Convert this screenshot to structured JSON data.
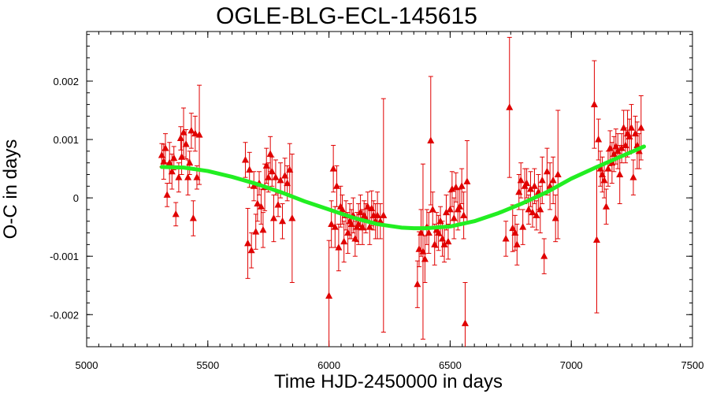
{
  "chart_data": {
    "type": "scatter",
    "title": "OGLE-BLG-ECL-145615",
    "xlabel": "Time HJD-2450000 in days",
    "ylabel": "O-C in days",
    "xlim": [
      5000,
      7500
    ],
    "ylim": [
      -0.00255,
      0.00285
    ],
    "x_ticks": [
      5000,
      5500,
      6000,
      6500,
      7000,
      7500
    ],
    "x_tick_labels": [
      "5000",
      "5500",
      "6000",
      "6500",
      "7000",
      "7500"
    ],
    "y_ticks": [
      -0.002,
      -0.001,
      0,
      0.001,
      0.002
    ],
    "y_tick_labels": [
      "-0.002",
      "-0.001",
      "0",
      "0.001",
      "0.002"
    ],
    "grid": false,
    "colors": {
      "points": "#e00000",
      "fit": "#22ee22"
    },
    "series": [
      {
        "kind": "points-with-errorbars",
        "points": [
          {
            "x": 5310,
            "y": 0.00073,
            "err": 0.0002
          },
          {
            "x": 5318,
            "y": 0.00062,
            "err": 0.0003
          },
          {
            "x": 5325,
            "y": 0.00085,
            "err": 0.00025
          },
          {
            "x": 5332,
            "y": 5e-05,
            "err": 0.0002
          },
          {
            "x": 5342,
            "y": 0.0006,
            "err": 0.00035
          },
          {
            "x": 5352,
            "y": 0.00045,
            "err": 0.0003
          },
          {
            "x": 5360,
            "y": 0.00068,
            "err": 0.0002
          },
          {
            "x": 5368,
            "y": -0.00028,
            "err": 0.0002
          },
          {
            "x": 5380,
            "y": 0.00035,
            "err": 0.00025
          },
          {
            "x": 5388,
            "y": 0.00102,
            "err": 0.0002
          },
          {
            "x": 5392,
            "y": 0.0007,
            "err": 0.0003
          },
          {
            "x": 5400,
            "y": 0.00112,
            "err": 0.00042
          },
          {
            "x": 5410,
            "y": 0.00092,
            "err": 0.00025
          },
          {
            "x": 5418,
            "y": 0.00035,
            "err": 0.0003
          },
          {
            "x": 5425,
            "y": 0.0006,
            "err": 0.0002
          },
          {
            "x": 5432,
            "y": 0.00115,
            "err": 0.0003
          },
          {
            "x": 5440,
            "y": -0.00035,
            "err": 0.0003
          },
          {
            "x": 5448,
            "y": 0.0011,
            "err": 0.0003
          },
          {
            "x": 5455,
            "y": 0.00035,
            "err": 0.0002
          },
          {
            "x": 5465,
            "y": 0.00108,
            "err": 0.00085
          },
          {
            "x": 5655,
            "y": 0.00065,
            "err": 0.0003
          },
          {
            "x": 5665,
            "y": -0.00078,
            "err": 0.0006
          },
          {
            "x": 5672,
            "y": 0.00048,
            "err": 0.0003
          },
          {
            "x": 5680,
            "y": -0.0009,
            "err": 0.0003
          },
          {
            "x": 5690,
            "y": 0.0002,
            "err": 0.00025
          },
          {
            "x": 5698,
            "y": -0.00058,
            "err": 0.0003
          },
          {
            "x": 5705,
            "y": -0.0001,
            "err": 0.0003
          },
          {
            "x": 5712,
            "y": 0.00025,
            "err": 0.0002
          },
          {
            "x": 5720,
            "y": -0.00015,
            "err": 0.0003
          },
          {
            "x": 5728,
            "y": -0.00055,
            "err": 0.0003
          },
          {
            "x": 5735,
            "y": 0.00018,
            "err": 0.0004
          },
          {
            "x": 5742,
            "y": 0.00055,
            "err": 0.0003
          },
          {
            "x": 5750,
            "y": 0.00035,
            "err": 0.00025
          },
          {
            "x": 5758,
            "y": 0.00075,
            "err": 0.0003
          },
          {
            "x": 5765,
            "y": 0.00045,
            "err": 0.00025
          },
          {
            "x": 5772,
            "y": -0.00035,
            "err": 0.0004
          },
          {
            "x": 5780,
            "y": 0.00035,
            "err": 0.0003
          },
          {
            "x": 5790,
            "y": -0.00012,
            "err": 0.0002
          },
          {
            "x": 5800,
            "y": 0.0003,
            "err": 0.0003
          },
          {
            "x": 5808,
            "y": -0.0004,
            "err": 0.0003
          },
          {
            "x": 5818,
            "y": 0.00038,
            "err": 0.0003
          },
          {
            "x": 5828,
            "y": 0.00025,
            "err": 0.0003
          },
          {
            "x": 5838,
            "y": 0.00048,
            "err": 0.00045
          },
          {
            "x": 5848,
            "y": -0.00035,
            "err": 0.0011
          },
          {
            "x": 6000,
            "y": -0.00168,
            "err": 0.00095
          },
          {
            "x": 6010,
            "y": -0.00045,
            "err": 0.0004
          },
          {
            "x": 6018,
            "y": 0.0005,
            "err": 0.0004
          },
          {
            "x": 6025,
            "y": -0.0005,
            "err": 0.00035
          },
          {
            "x": 6032,
            "y": 0.0002,
            "err": 0.00035
          },
          {
            "x": 6040,
            "y": -0.00085,
            "err": 0.0004
          },
          {
            "x": 6048,
            "y": -0.00015,
            "err": 0.00035
          },
          {
            "x": 6055,
            "y": -0.0002,
            "err": 0.00025
          },
          {
            "x": 6062,
            "y": -0.00075,
            "err": 0.00035
          },
          {
            "x": 6070,
            "y": -0.0003,
            "err": 0.00025
          },
          {
            "x": 6078,
            "y": -0.0006,
            "err": 0.00035
          },
          {
            "x": 6086,
            "y": -0.0004,
            "err": 0.0003
          },
          {
            "x": 6093,
            "y": -0.00045,
            "err": 0.00025
          },
          {
            "x": 6100,
            "y": -0.0003,
            "err": 0.0003
          },
          {
            "x": 6108,
            "y": -0.0007,
            "err": 0.0003
          },
          {
            "x": 6115,
            "y": -0.0005,
            "err": 0.00025
          },
          {
            "x": 6122,
            "y": -0.00045,
            "err": 0.00035
          },
          {
            "x": 6130,
            "y": -0.00025,
            "err": 0.0003
          },
          {
            "x": 6138,
            "y": -0.0005,
            "err": 0.0003
          },
          {
            "x": 6145,
            "y": -0.0003,
            "err": 0.00025
          },
          {
            "x": 6152,
            "y": -0.00035,
            "err": 0.00025
          },
          {
            "x": 6160,
            "y": -0.00015,
            "err": 0.00025
          },
          {
            "x": 6168,
            "y": -0.0005,
            "err": 0.0003
          },
          {
            "x": 6176,
            "y": -0.00018,
            "err": 0.0003
          },
          {
            "x": 6184,
            "y": -0.0003,
            "err": 0.00025
          },
          {
            "x": 6192,
            "y": -0.0004,
            "err": 0.0003
          },
          {
            "x": 6200,
            "y": -0.0003,
            "err": 0.0004
          },
          {
            "x": 6212,
            "y": -0.0004,
            "err": 0.0003
          },
          {
            "x": 6225,
            "y": -0.0003,
            "err": 0.002
          },
          {
            "x": 6365,
            "y": -0.00148,
            "err": 0.0004
          },
          {
            "x": 6372,
            "y": -0.00088,
            "err": 0.0003
          },
          {
            "x": 6380,
            "y": -0.0006,
            "err": 0.0004
          },
          {
            "x": 6388,
            "y": -0.00092,
            "err": 0.0015
          },
          {
            "x": 6396,
            "y": -0.00105,
            "err": 0.0004
          },
          {
            "x": 6404,
            "y": -0.0005,
            "err": 0.0003
          },
          {
            "x": 6412,
            "y": -0.0006,
            "err": 0.00035
          },
          {
            "x": 6420,
            "y": 0.00098,
            "err": 0.0011
          },
          {
            "x": 6428,
            "y": -0.0002,
            "err": 0.0003
          },
          {
            "x": 6436,
            "y": -0.0008,
            "err": 0.00035
          },
          {
            "x": 6444,
            "y": -0.00055,
            "err": 0.0003
          },
          {
            "x": 6452,
            "y": -0.0006,
            "err": 0.0003
          },
          {
            "x": 6460,
            "y": -0.0004,
            "err": 0.00025
          },
          {
            "x": 6468,
            "y": -0.0007,
            "err": 0.0003
          },
          {
            "x": 6476,
            "y": -0.0008,
            "err": 0.0003
          },
          {
            "x": 6484,
            "y": -0.00025,
            "err": 0.0003
          },
          {
            "x": 6492,
            "y": -0.00075,
            "err": 0.0003
          },
          {
            "x": 6500,
            "y": -0.0002,
            "err": 0.0003
          },
          {
            "x": 6508,
            "y": 0.00015,
            "err": 0.0003
          },
          {
            "x": 6516,
            "y": -0.00035,
            "err": 0.00035
          },
          {
            "x": 6524,
            "y": 0.00018,
            "err": 0.00025
          },
          {
            "x": 6532,
            "y": -0.0002,
            "err": 0.00035
          },
          {
            "x": 6540,
            "y": -0.00015,
            "err": 0.0003
          },
          {
            "x": 6548,
            "y": 0.0002,
            "err": 0.0003
          },
          {
            "x": 6556,
            "y": -0.0003,
            "err": 0.0004
          },
          {
            "x": 6562,
            "y": -0.00215,
            "err": 0.0007
          },
          {
            "x": 6570,
            "y": 0.00028,
            "err": 0.0007
          },
          {
            "x": 6730,
            "y": -0.0007,
            "err": 0.0003
          },
          {
            "x": 6745,
            "y": 0.00155,
            "err": 0.0012
          },
          {
            "x": 6758,
            "y": -0.00052,
            "err": 0.0004
          },
          {
            "x": 6768,
            "y": -0.0006,
            "err": 0.0003
          },
          {
            "x": 6776,
            "y": -0.0008,
            "err": 0.00035
          },
          {
            "x": 6784,
            "y": 0.0001,
            "err": 0.0003
          },
          {
            "x": 6792,
            "y": 0.0003,
            "err": 0.0003
          },
          {
            "x": 6800,
            "y": -0.0005,
            "err": 0.0003
          },
          {
            "x": 6808,
            "y": 0.0002,
            "err": 0.0003
          },
          {
            "x": 6816,
            "y": 0.00025,
            "err": 0.00025
          },
          {
            "x": 6824,
            "y": -0.0002,
            "err": 0.00025
          },
          {
            "x": 6832,
            "y": 0.00015,
            "err": 0.0003
          },
          {
            "x": 6840,
            "y": -0.00025,
            "err": 0.00025
          },
          {
            "x": 6848,
            "y": 0.0002,
            "err": 0.0003
          },
          {
            "x": 6856,
            "y": -0.0003,
            "err": 0.00025
          },
          {
            "x": 6864,
            "y": 0.0001,
            "err": 0.0003
          },
          {
            "x": 6872,
            "y": -0.0002,
            "err": 0.0004
          },
          {
            "x": 6880,
            "y": 0.0003,
            "err": 0.0004
          },
          {
            "x": 6888,
            "y": -0.001,
            "err": 0.0003
          },
          {
            "x": 6900,
            "y": 0.00045,
            "err": 0.0004
          },
          {
            "x": 6912,
            "y": 0.0002,
            "err": 0.0004
          },
          {
            "x": 6925,
            "y": 0.0003,
            "err": 0.0004
          },
          {
            "x": 6935,
            "y": -0.00035,
            "err": 0.0004
          },
          {
            "x": 6945,
            "y": 0.0004,
            "err": 0.0011
          },
          {
            "x": 7095,
            "y": 0.0016,
            "err": 0.00075
          },
          {
            "x": 7105,
            "y": -0.00072,
            "err": 0.00125
          },
          {
            "x": 7112,
            "y": 0.001,
            "err": 0.00035
          },
          {
            "x": 7120,
            "y": 0.0005,
            "err": 0.0003
          },
          {
            "x": 7128,
            "y": 0.0004,
            "err": 0.0003
          },
          {
            "x": 7136,
            "y": 0.0003,
            "err": 0.0003
          },
          {
            "x": 7144,
            "y": -0.00015,
            "err": 0.0003
          },
          {
            "x": 7152,
            "y": 0.0005,
            "err": 0.0003
          },
          {
            "x": 7160,
            "y": 0.00085,
            "err": 0.0003
          },
          {
            "x": 7168,
            "y": 0.0006,
            "err": 0.00035
          },
          {
            "x": 7176,
            "y": 0.00075,
            "err": 0.0003
          },
          {
            "x": 7184,
            "y": 0.00088,
            "err": 0.0003
          },
          {
            "x": 7192,
            "y": 0.0008,
            "err": 0.0003
          },
          {
            "x": 7200,
            "y": 0.0004,
            "err": 0.0005
          },
          {
            "x": 7208,
            "y": 0.00085,
            "err": 0.00025
          },
          {
            "x": 7216,
            "y": 0.0012,
            "err": 0.0003
          },
          {
            "x": 7224,
            "y": 0.0009,
            "err": 0.0003
          },
          {
            "x": 7232,
            "y": 0.0011,
            "err": 0.0004
          },
          {
            "x": 7240,
            "y": 0.00105,
            "err": 0.0003
          },
          {
            "x": 7248,
            "y": 0.0012,
            "err": 0.0004
          },
          {
            "x": 7256,
            "y": 0.00035,
            "err": 0.0003
          },
          {
            "x": 7264,
            "y": 0.0011,
            "err": 0.0003
          },
          {
            "x": 7272,
            "y": 0.0009,
            "err": 0.0004
          },
          {
            "x": 7280,
            "y": 0.0008,
            "err": 0.0003
          },
          {
            "x": 7288,
            "y": 0.0012,
            "err": 0.00055
          }
        ]
      },
      {
        "kind": "fit-curve",
        "x": [
          5310,
          5400,
          5500,
          5600,
          5700,
          5800,
          5900,
          6000,
          6100,
          6200,
          6300,
          6350,
          6400,
          6500,
          6600,
          6700,
          6800,
          6900,
          7000,
          7100,
          7200,
          7300
        ],
        "y": [
          0.00053,
          0.00052,
          0.00046,
          0.00036,
          0.00024,
          0.0001,
          -6e-05,
          -0.0002,
          -0.00034,
          -0.00045,
          -0.00051,
          -0.00052,
          -0.00052,
          -0.00049,
          -0.0004,
          -0.00026,
          -9e-05,
          0.0001,
          0.00033,
          0.00052,
          0.0007,
          0.00088
        ]
      }
    ]
  }
}
